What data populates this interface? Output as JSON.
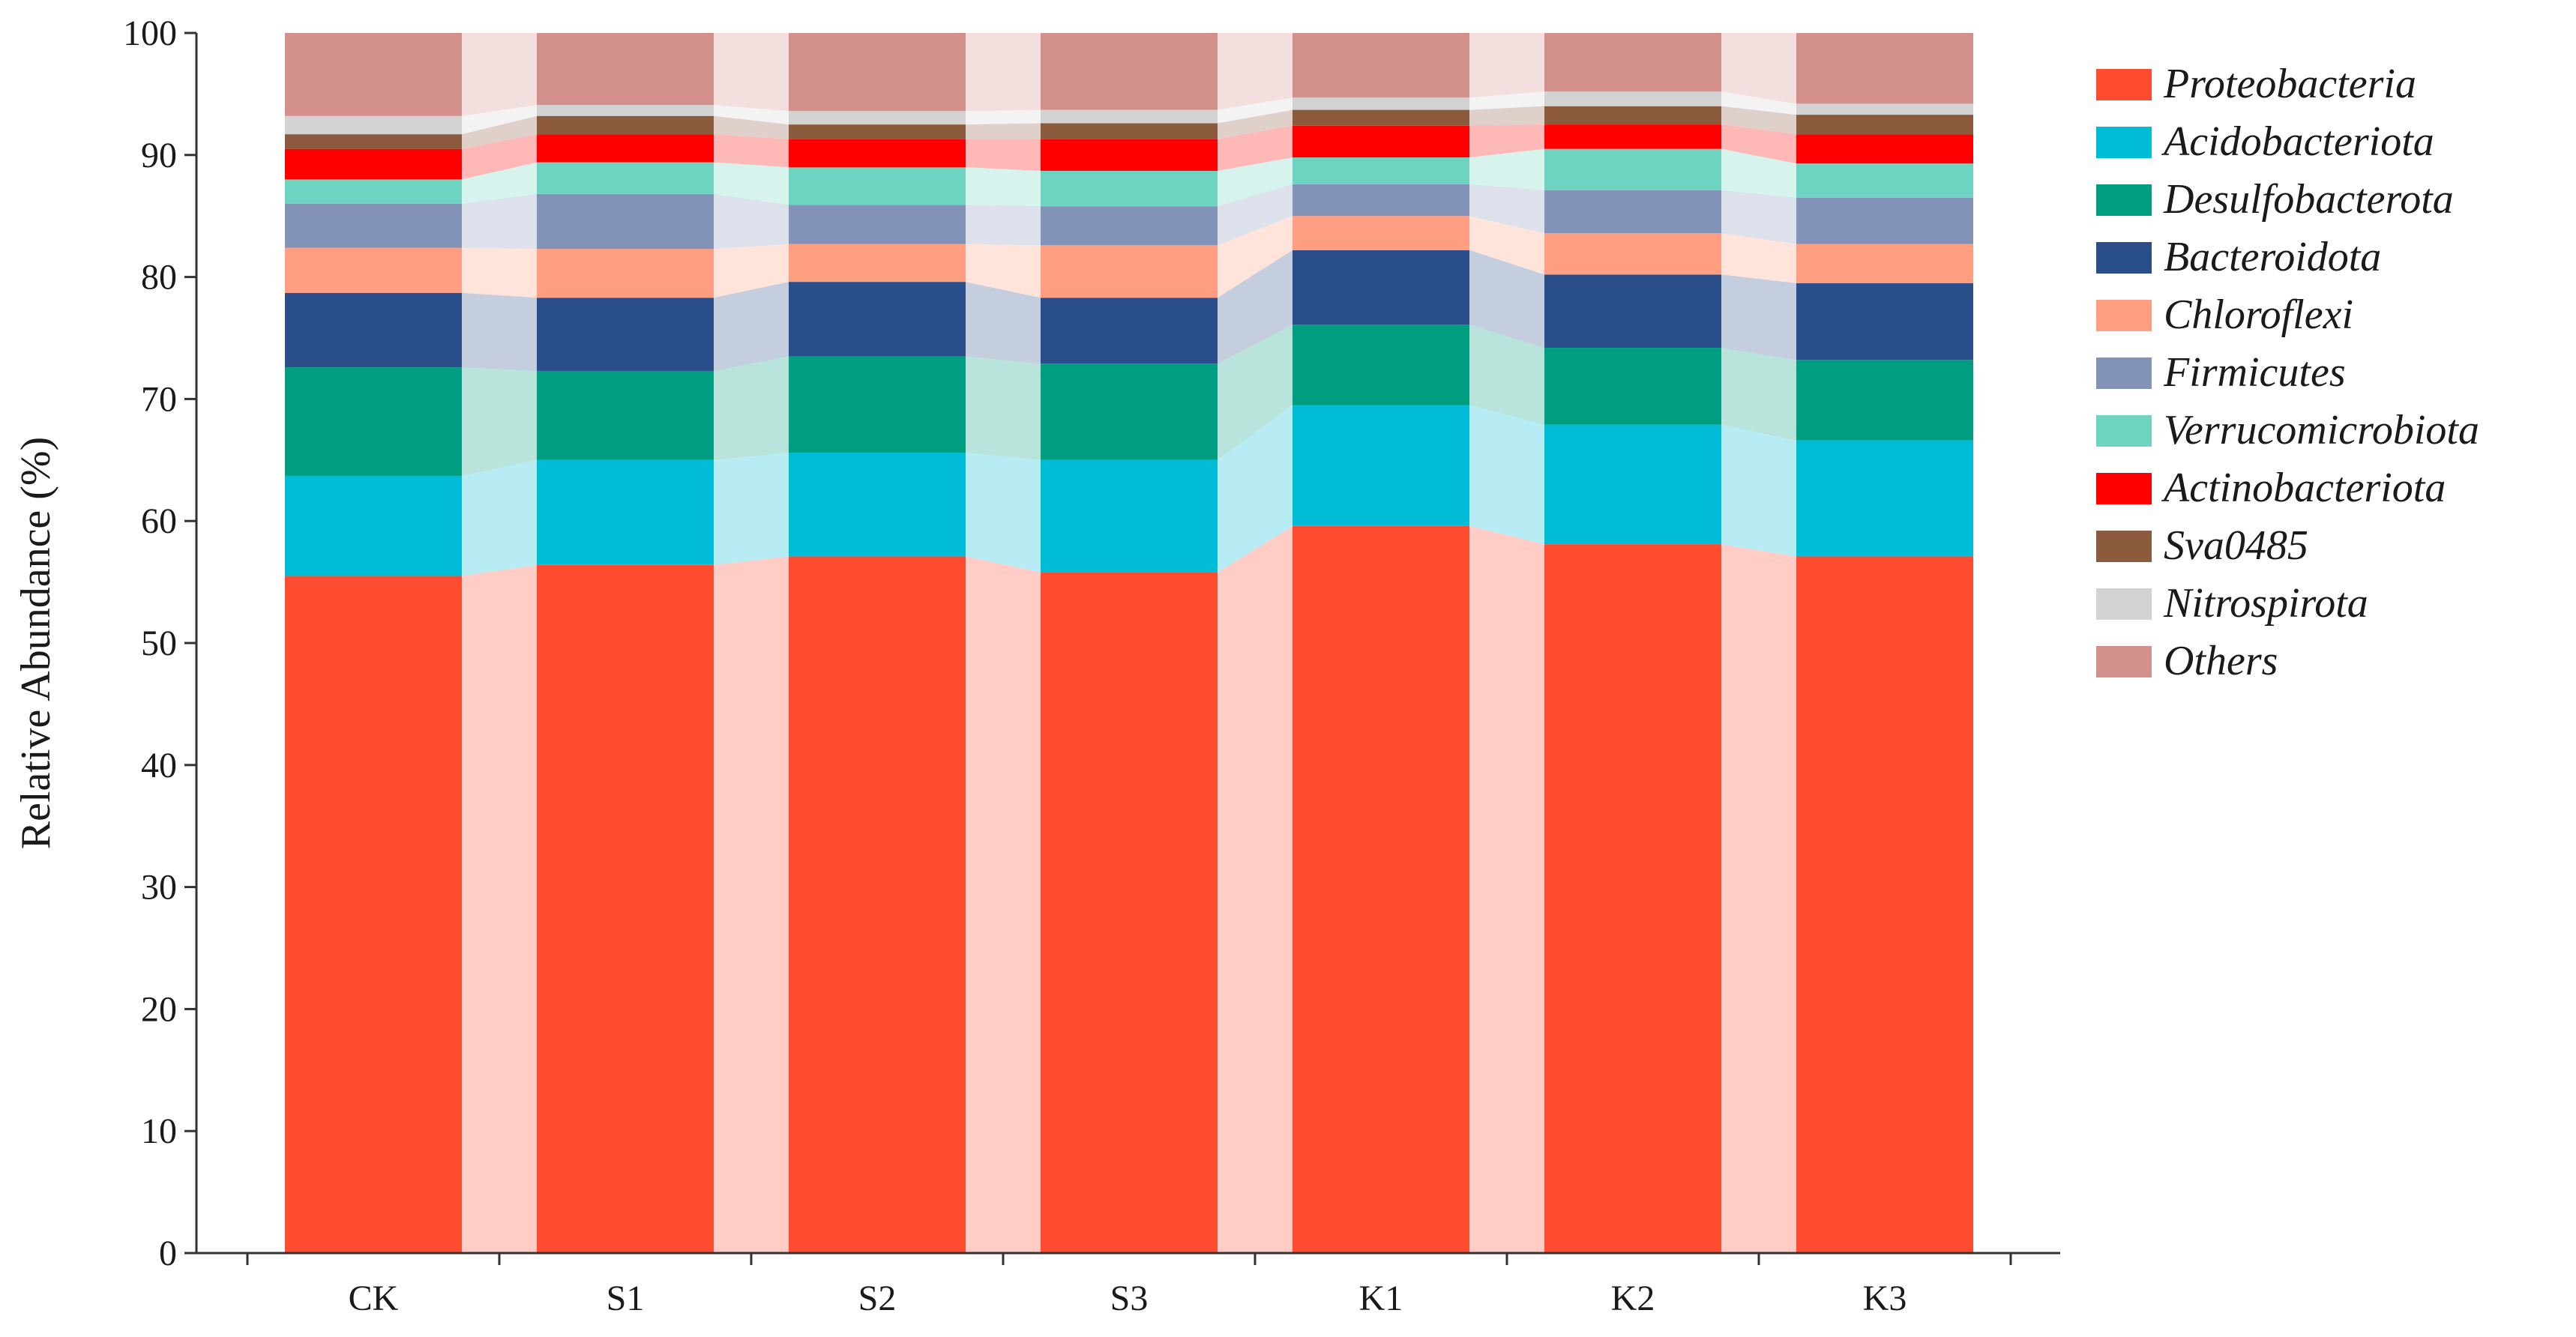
{
  "chart_data": {
    "type": "bar",
    "subtype": "stacked-100-percent-with-connecting-bands",
    "title": "",
    "xlabel": "",
    "ylabel": "Relative Abundance (%)",
    "ylim": [
      0,
      100
    ],
    "yticks": [
      0,
      10,
      20,
      30,
      40,
      50,
      60,
      70,
      80,
      90,
      100
    ],
    "grid": false,
    "legend_position": "right",
    "categories": [
      "CK",
      "S1",
      "S2",
      "S3",
      "K1",
      "K2",
      "K3"
    ],
    "series": [
      {
        "name": "Proteobacteria",
        "color": "#FF4B30",
        "values": [
          55.5,
          56.4,
          57.1,
          55.8,
          59.6,
          58.1,
          57.1
        ]
      },
      {
        "name": "Acidobacteriota",
        "color": "#00BCD6",
        "values": [
          8.2,
          8.6,
          8.5,
          9.2,
          9.9,
          9.8,
          9.5
        ]
      },
      {
        "name": "Desulfobacterota",
        "color": "#009E81",
        "values": [
          8.9,
          7.3,
          7.9,
          7.9,
          6.6,
          6.3,
          6.6
        ]
      },
      {
        "name": "Bacteroidota",
        "color": "#2A4E8A",
        "values": [
          6.1,
          6.0,
          6.1,
          5.4,
          6.1,
          6.0,
          6.3
        ]
      },
      {
        "name": "Chloroflexi",
        "color": "#FF9E80",
        "values": [
          3.7,
          4.0,
          3.1,
          4.3,
          2.8,
          3.4,
          3.2
        ]
      },
      {
        "name": "Firmicutes",
        "color": "#8393B7",
        "values": [
          3.6,
          4.5,
          3.2,
          3.2,
          2.6,
          3.5,
          3.8
        ]
      },
      {
        "name": "Verrucomicrobiota",
        "color": "#6ED3C0",
        "values": [
          2.0,
          2.6,
          3.1,
          2.9,
          2.2,
          3.4,
          2.8
        ]
      },
      {
        "name": "Actinobacteriota",
        "color": "#FF0000",
        "values": [
          2.5,
          2.3,
          2.3,
          2.6,
          2.6,
          2.0,
          2.4
        ]
      },
      {
        "name": "Sva0485",
        "color": "#8C5B3E",
        "values": [
          1.2,
          1.5,
          1.2,
          1.3,
          1.3,
          1.5,
          1.6
        ]
      },
      {
        "name": "Nitrospirota",
        "color": "#D3D3D3",
        "values": [
          1.5,
          0.9,
          1.1,
          1.1,
          1.0,
          1.2,
          0.9
        ]
      },
      {
        "name": "Others",
        "color": "#D4908A",
        "values": [
          6.8,
          5.9,
          6.4,
          6.3,
          5.3,
          4.8,
          5.8
        ]
      }
    ]
  }
}
